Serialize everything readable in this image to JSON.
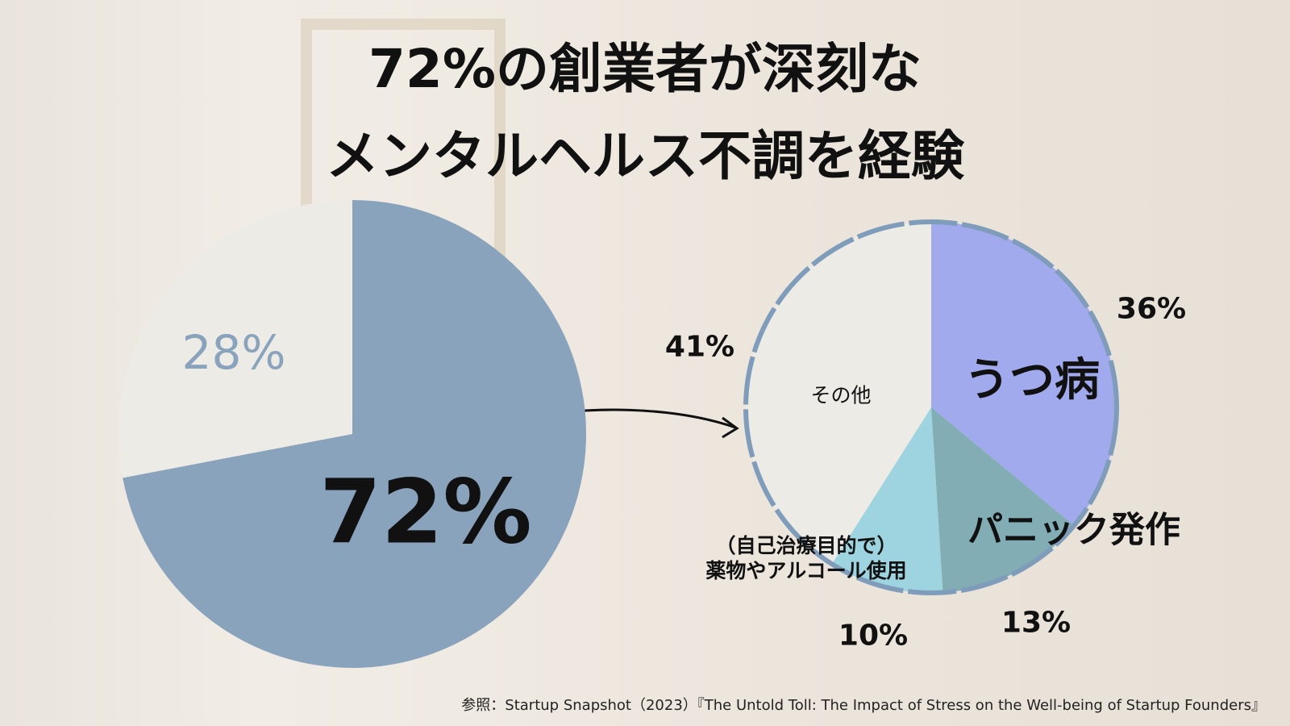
{
  "title": [
    "72%の創業者が深刻な",
    "メンタルヘルス不調を経験"
  ],
  "source": "参照：Startup Snapshot（2023）『The Untold Toll: The Impact of Stress on the Well-being of Startup Founders』",
  "chart_data": [
    {
      "type": "pie",
      "values": [
        72,
        28
      ],
      "value_labels": [
        "72%",
        "28%"
      ],
      "colors": [
        "#8aa3bd",
        "#ecebe6"
      ]
    },
    {
      "type": "pie",
      "categories": [
        "うつ病",
        "パニック発作",
        "（自己治療目的で）\n薬物やアルコール使用",
        "その他"
      ],
      "values": [
        36,
        13,
        10,
        41
      ],
      "value_labels": [
        "36%",
        "13%",
        "10%",
        "41%"
      ],
      "colors": [
        "#a0aaec",
        "#82adb4",
        "#9dd4df",
        "#ecebe6"
      ]
    }
  ]
}
